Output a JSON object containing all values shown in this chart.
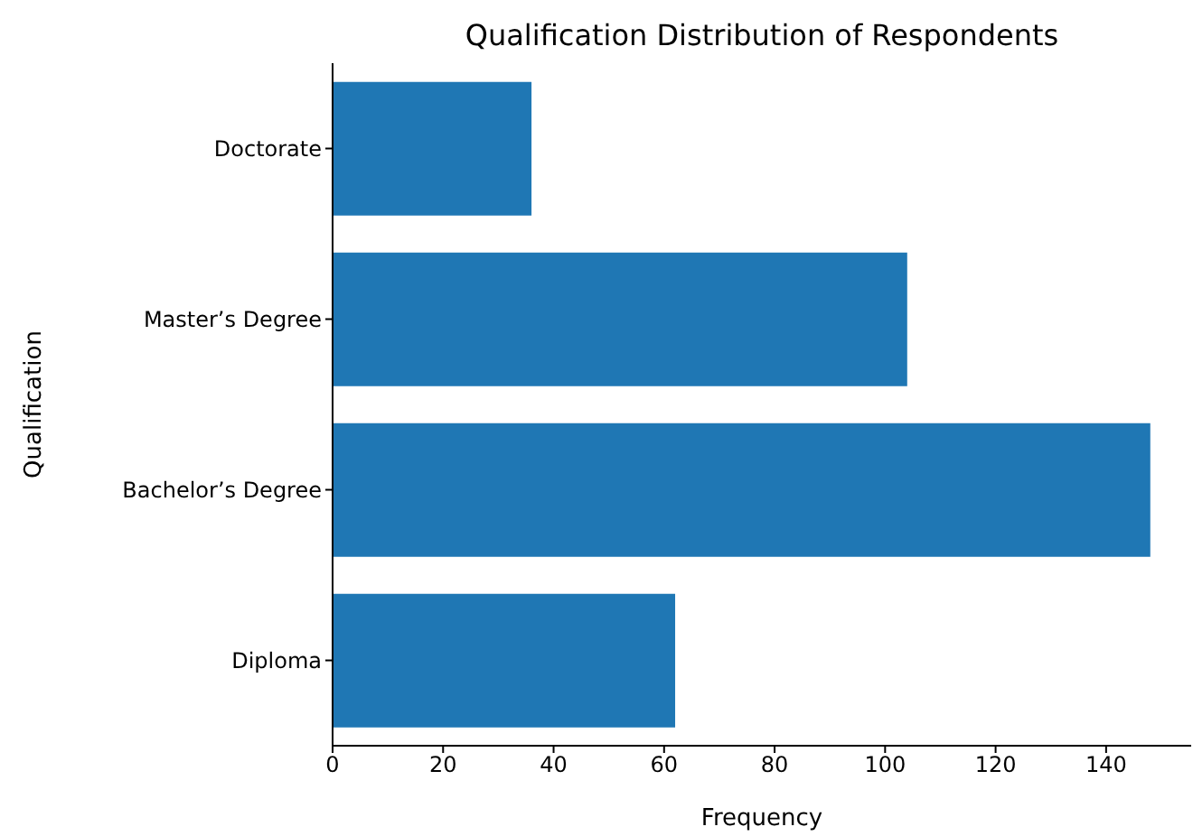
{
  "chart_data": {
    "type": "bar",
    "orientation": "horizontal",
    "title": "Qualification Distribution of Respondents",
    "xlabel": "Frequency",
    "ylabel": "Qualification",
    "categories": [
      "Doctorate",
      "Master’s Degree",
      "Bachelor’s Degree",
      "Diploma"
    ],
    "values": [
      36,
      104,
      148,
      62
    ],
    "color": "#1f77b4",
    "xlim": [
      0,
      155.4
    ],
    "xticks": [
      0,
      20,
      40,
      60,
      80,
      100,
      120,
      140
    ],
    "grid": false,
    "legend": false
  }
}
